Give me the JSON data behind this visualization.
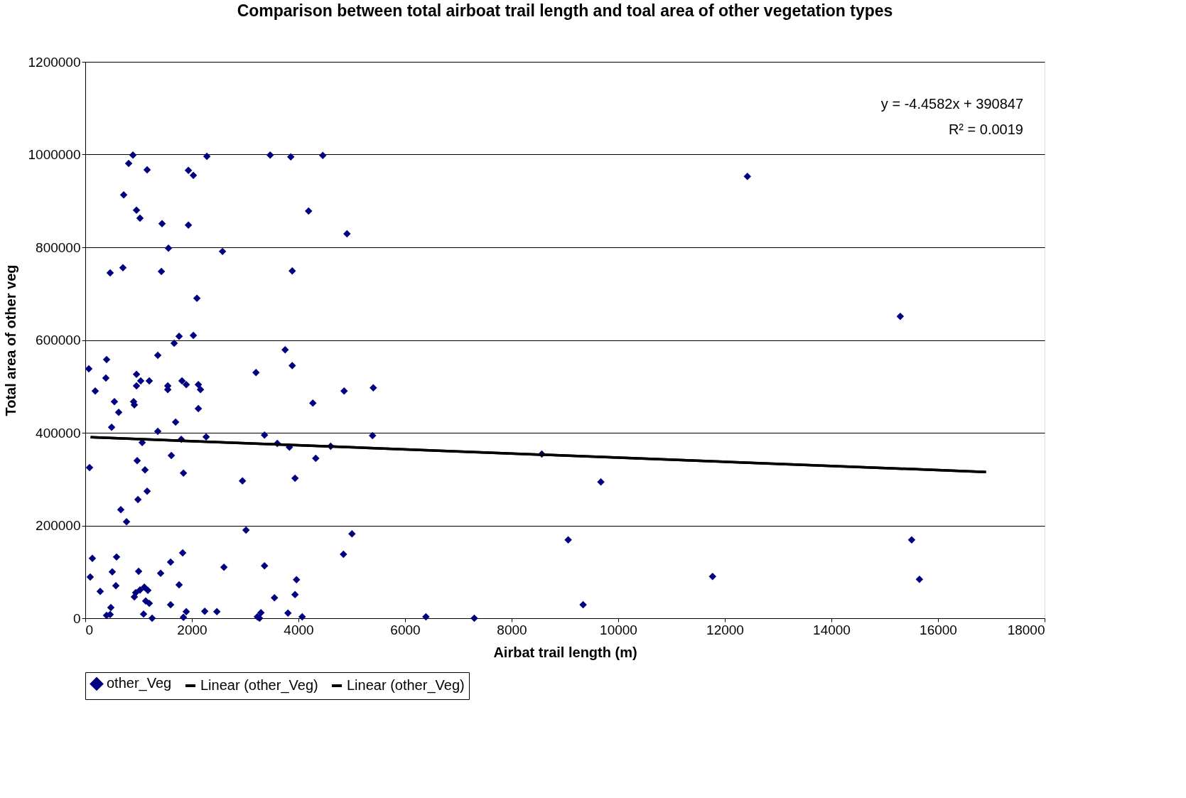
{
  "chart_data": {
    "type": "scatter",
    "title": "Comparison between total airboat trail length and toal area of other vegetation types",
    "xlabel": "Airbat trail length (m)",
    "ylabel": "Total area of other veg",
    "xlim": [
      0,
      18000
    ],
    "xticks": [
      0,
      2000,
      4000,
      6000,
      8000,
      10000,
      12000,
      14000,
      16000,
      18000
    ],
    "ylim": [
      0,
      1200000
    ],
    "yticks": [
      0,
      200000,
      400000,
      600000,
      800000,
      1000000,
      1200000
    ],
    "grid": "y",
    "legend": "bottom",
    "marker": "diamond",
    "annotations": [
      "y = -4.4582x + 390847",
      "R² = 0.0019"
    ],
    "series": [
      {
        "name": "other_Veg",
        "color": "#000080",
        "x": [
          894,
          814,
          1161,
          721,
          961,
          1027,
          1441,
          1935,
          2028,
          2282,
          1561,
          1935,
          467,
          707,
          1428,
          2575,
          2095,
          3469,
          3856,
          4457,
          4190,
          4911,
          3883,
          12423,
          15292,
          67,
          400,
          187,
          387,
          961,
          1041,
          1201,
          961,
          547,
          907,
          921,
          627,
          494,
          1361,
          1668,
          1761,
          2028,
          1548,
          1548,
          1815,
          1895,
          2122,
          2162,
          2122,
          1695,
          1361,
          1068,
          1801,
          2268,
          80,
          974,
          1121,
          1615,
          1842,
          1161,
          988,
          667,
          774,
          3203,
          3750,
          3883,
          4270,
          4857,
          5404,
          3363,
          3603,
          3830,
          4604,
          4324,
          3936,
          2949,
          5390,
          3016,
          5004,
          4844,
          8567,
          9674,
          9061,
          9341,
          11770,
          15506,
          15652,
          6392,
          7299,
          133,
          93,
          280,
          587,
          507,
          574,
          480,
          467,
          400,
          1001,
          947,
          921,
          1027,
          1108,
          1174,
          1134,
          1201,
          1094,
          1254,
          1414,
          1601,
          1828,
          1761,
          1601,
          1895,
          1842,
          2242,
          2469,
          2602,
          3363,
          3550,
          3963,
          3936,
          3229,
          3296,
          3269,
          3803,
          4070
        ],
        "values": [
          999000,
          981000,
          967000,
          913000,
          880000,
          863000,
          851000,
          966000,
          955000,
          996000,
          798000,
          848000,
          745000,
          756000,
          748000,
          791000,
          690000,
          999000,
          995000,
          998000,
          878000,
          829000,
          749000,
          953000,
          651000,
          538000,
          558000,
          490000,
          518000,
          526000,
          512000,
          512000,
          501000,
          467000,
          467000,
          460000,
          444000,
          412000,
          567000,
          593000,
          608000,
          610000,
          501000,
          493000,
          512000,
          504000,
          504000,
          493000,
          452000,
          423000,
          403000,
          379000,
          386000,
          391000,
          325000,
          340000,
          320000,
          351000,
          313000,
          274000,
          256000,
          234000,
          208000,
          530000,
          579000,
          545000,
          464000,
          490000,
          497000,
          395000,
          377000,
          369000,
          371000,
          345000,
          302000,
          296000,
          394000,
          190000,
          182000,
          138000,
          354000,
          294000,
          169000,
          29000,
          90000,
          169000,
          84000,
          3000,
          0,
          129000,
          89000,
          58000,
          132000,
          100000,
          70000,
          23000,
          8000,
          6000,
          101000,
          55000,
          46000,
          61000,
          67000,
          60000,
          37000,
          32000,
          9000,
          0,
          97000,
          121000,
          141000,
          72000,
          29000,
          14000,
          2000,
          15000,
          14000,
          110000,
          113000,
          44000,
          83000,
          51000,
          3000,
          12000,
          0,
          11000,
          3000
        ]
      },
      {
        "name": "Linear (other_Veg)",
        "type": "line",
        "color": "#000000",
        "marker": "none",
        "x": [
          100,
          16900
        ],
        "values": [
          390401,
          315503
        ]
      },
      {
        "name": "Linear (other_Veg)",
        "type": "line",
        "color": "#000000",
        "marker": "none",
        "x": [
          100,
          16900
        ],
        "values": [
          390401,
          315503
        ]
      }
    ]
  }
}
